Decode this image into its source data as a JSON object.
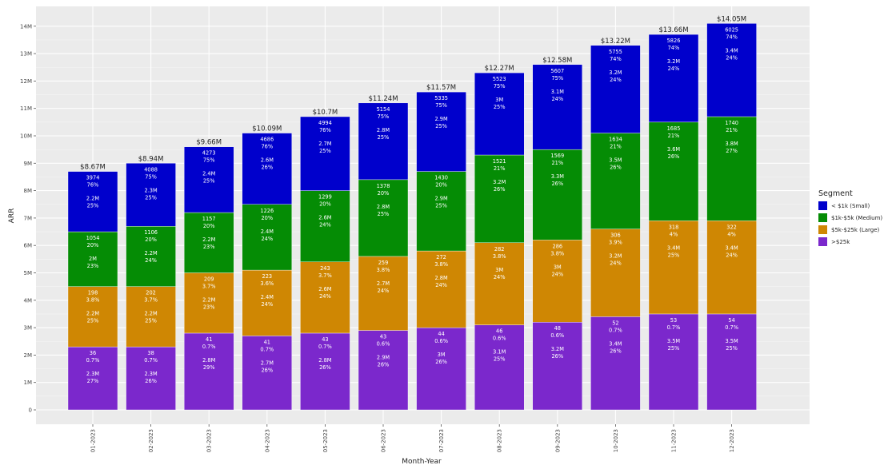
{
  "chart_data": {
    "type": "bar",
    "stacked": true,
    "xlabel": "Month-Year",
    "ylabel": "ARR",
    "categories": [
      "01-2023",
      "02-2023",
      "03-2023",
      "04-2023",
      "05-2023",
      "06-2023",
      "07-2023",
      "08-2023",
      "09-2023",
      "10-2023",
      "11-2023",
      "12-2023"
    ],
    "totals": [
      "$8.67M",
      "$8.94M",
      "$9.66M",
      "$10.09M",
      "$10.7M",
      "$11.24M",
      "$11.57M",
      "$12.27M",
      "$12.58M",
      "$13.22M",
      "$13.66M",
      "$14.05M"
    ],
    "ylim": [
      0,
      14500000
    ],
    "yticks": [
      {
        "value": 0,
        "label": "0"
      },
      {
        "value": 1000000,
        "label": "1M"
      },
      {
        "value": 2000000,
        "label": "2M"
      },
      {
        "value": 3000000,
        "label": "3M"
      },
      {
        "value": 4000000,
        "label": "4M"
      },
      {
        "value": 5000000,
        "label": "5M"
      },
      {
        "value": 6000000,
        "label": "6M"
      },
      {
        "value": 7000000,
        "label": "7M"
      },
      {
        "value": 8000000,
        "label": "8M"
      },
      {
        "value": 9000000,
        "label": "9M"
      },
      {
        "value": 10000000,
        "label": "10M"
      },
      {
        "value": 11000000,
        "label": "11M"
      },
      {
        "value": 12000000,
        "label": "12M"
      },
      {
        "value": 13000000,
        "label": "13M"
      },
      {
        "value": 14000000,
        "label": "14M"
      }
    ],
    "grid": true,
    "legend": {
      "title": "Segment",
      "position": "right",
      "entries": [
        "< $1k (Small)",
        "$1k-$5k (Medium)",
        "$5k-$25k (Large)",
        ">$25k"
      ]
    },
    "series": [
      {
        "name": ">$25k",
        "color": "#7b28cc",
        "values": [
          2300000,
          2300000,
          2800000,
          2700000,
          2800000,
          2900000,
          3000000,
          3100000,
          3200000,
          3400000,
          3500000,
          3500000
        ],
        "counts": [
          "36",
          "38",
          "41",
          "41",
          "43",
          "43",
          "44",
          "46",
          "48",
          "52",
          "53",
          "54"
        ],
        "count_pcts": [
          "0.7%",
          "0.7%",
          "0.7%",
          "0.7%",
          "0.7%",
          "0.6%",
          "0.6%",
          "0.6%",
          "0.6%",
          "0.7%",
          "0.7%",
          "0.7%"
        ],
        "arr_labels": [
          "2.3M",
          "2.3M",
          "2.8M",
          "2.7M",
          "2.8M",
          "2.9M",
          "3M",
          "3.1M",
          "3.2M",
          "3.4M",
          "3.5M",
          "3.5M"
        ],
        "arr_pcts": [
          "27%",
          "26%",
          "29%",
          "26%",
          "26%",
          "26%",
          "26%",
          "25%",
          "26%",
          "26%",
          "25%",
          "25%"
        ]
      },
      {
        "name": "$5k-$25k (Large)",
        "color": "#cf8703",
        "values": [
          2200000,
          2200000,
          2200000,
          2400000,
          2600000,
          2700000,
          2800000,
          3000000,
          3000000,
          3200000,
          3400000,
          3400000
        ],
        "counts": [
          "198",
          "202",
          "209",
          "223",
          "243",
          "259",
          "272",
          "282",
          "286",
          "306",
          "318",
          "322"
        ],
        "count_pcts": [
          "3.8%",
          "3.7%",
          "3.7%",
          "3.6%",
          "3.7%",
          "3.8%",
          "3.8%",
          "3.8%",
          "3.8%",
          "3.9%",
          "4%",
          "4%"
        ],
        "arr_labels": [
          "2.2M",
          "2.2M",
          "2.2M",
          "2.4M",
          "2.6M",
          "2.7M",
          "2.8M",
          "3M",
          "3M",
          "3.2M",
          "3.4M",
          "3.4M"
        ],
        "arr_pcts": [
          "25%",
          "25%",
          "23%",
          "24%",
          "24%",
          "24%",
          "24%",
          "24%",
          "24%",
          "24%",
          "25%",
          "24%"
        ]
      },
      {
        "name": "$1k-$5k (Medium)",
        "color": "#058c05",
        "values": [
          2000000,
          2200000,
          2200000,
          2400000,
          2600000,
          2800000,
          2900000,
          3200000,
          3300000,
          3500000,
          3600000,
          3800000
        ],
        "counts": [
          "1054",
          "1106",
          "1157",
          "1226",
          "1299",
          "1378",
          "1430",
          "1521",
          "1569",
          "1634",
          "1685",
          "1740"
        ],
        "count_pcts": [
          "20%",
          "20%",
          "20%",
          "20%",
          "20%",
          "20%",
          "20%",
          "21%",
          "21%",
          "21%",
          "21%",
          "21%"
        ],
        "arr_labels": [
          "2M",
          "2.2M",
          "2.2M",
          "2.4M",
          "2.6M",
          "2.8M",
          "2.9M",
          "3.2M",
          "3.3M",
          "3.5M",
          "3.6M",
          "3.8M"
        ],
        "arr_pcts": [
          "23%",
          "24%",
          "23%",
          "24%",
          "24%",
          "25%",
          "25%",
          "26%",
          "26%",
          "26%",
          "26%",
          "27%"
        ]
      },
      {
        "name": "< $1k (Small)",
        "color": "#0000cc",
        "values": [
          2200000,
          2300000,
          2400000,
          2600000,
          2700000,
          2800000,
          2900000,
          3000000,
          3100000,
          3200000,
          3200000,
          3400000
        ],
        "counts": [
          "3974",
          "4088",
          "4273",
          "4686",
          "4994",
          "5154",
          "5335",
          "5523",
          "5607",
          "5755",
          "5826",
          "6025"
        ],
        "count_pcts": [
          "76%",
          "75%",
          "75%",
          "76%",
          "76%",
          "75%",
          "75%",
          "75%",
          "75%",
          "74%",
          "74%",
          "74%"
        ],
        "arr_labels": [
          "2.2M",
          "2.3M",
          "2.4M",
          "2.6M",
          "2.7M",
          "2.8M",
          "2.9M",
          "3M",
          "3.1M",
          "3.2M",
          "3.2M",
          "3.4M"
        ],
        "arr_pcts": [
          "25%",
          "25%",
          "25%",
          "26%",
          "25%",
          "25%",
          "25%",
          "25%",
          "24%",
          "24%",
          "24%",
          "24%"
        ]
      }
    ]
  }
}
